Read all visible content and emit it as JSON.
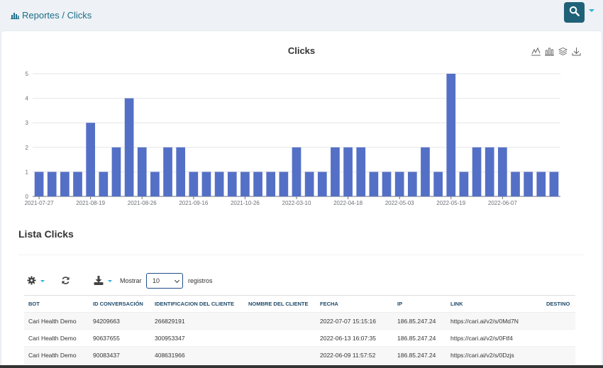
{
  "breadcrumb": {
    "text": "Reportes / Clicks"
  },
  "chart_data": {
    "type": "bar",
    "title": "Clicks",
    "ylim": [
      0,
      5
    ],
    "yticks": [
      0,
      1,
      2,
      3,
      4,
      5
    ],
    "xlabel": "",
    "ylabel": "",
    "grid": true,
    "color": "#5470c6",
    "values": [
      1,
      1,
      1,
      1,
      3,
      1,
      2,
      4,
      2,
      1,
      2,
      2,
      1,
      1,
      1,
      1,
      1,
      1,
      1,
      1,
      2,
      1,
      1,
      2,
      2,
      2,
      1,
      1,
      1,
      1,
      2,
      1,
      5,
      1,
      2,
      2,
      2,
      1,
      1,
      1,
      1
    ],
    "tick_labels": [
      "2021-07-27",
      "2021-08-19",
      "2021-08-26",
      "2021-09-16",
      "2021-10-26",
      "2022-03-10",
      "2022-04-18",
      "2022-05-03",
      "2022-05-19",
      "2022-06-07"
    ],
    "tick_label_every": 4
  },
  "list": {
    "title": "Lista Clicks"
  },
  "controls": {
    "show_label": "Mostrar",
    "page_size": "10",
    "records_label": "registros"
  },
  "table": {
    "columns": [
      "BOT",
      "ID CONVERSACIÓN",
      "IDENTIFICACION DEL CLIENTE",
      "NOMBRE DEL CLIENTE",
      "FECHA",
      "IP",
      "LINK",
      "DESTINO"
    ],
    "rows": [
      [
        "Cari Health Demo",
        "94209663",
        "266829191",
        "",
        "2022-07-07 15:15:16",
        "186.85.247.24",
        "https://cari.ai/v2/s/0Md7N",
        ""
      ],
      [
        "Cari Health Demo",
        "90637655",
        "300953347",
        "",
        "2022-06-13 16:07:35",
        "186.85.247.24",
        "https://cari.ai/v2/s/0Ftf4",
        ""
      ],
      [
        "Cari Health Demo",
        "90083437",
        "408631966",
        "",
        "2022-06-09 11:57:52",
        "186.85.247.24",
        "https://cari.ai/v2/s/0Dzjs",
        ""
      ]
    ]
  },
  "icons": {
    "breadcrumb": "bar-chart-icon",
    "search": "search-icon",
    "settings": "gear-icon",
    "refresh": "refresh-icon",
    "download": "download-icon"
  },
  "colors": {
    "accent": "#1f6278",
    "bar": "#5470c6",
    "link": "#1b6f8a"
  }
}
